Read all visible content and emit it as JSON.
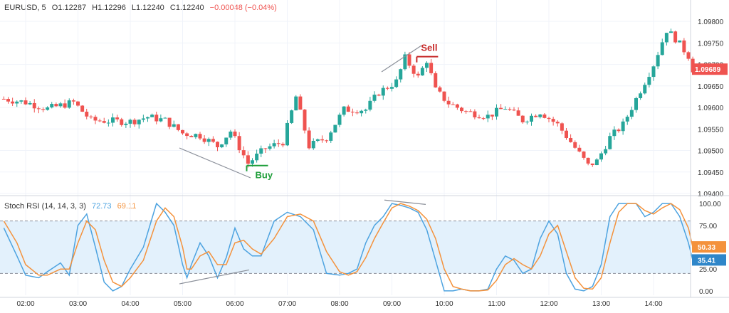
{
  "header": {
    "symbol": "EURUSD, 5",
    "open": "O1.12287",
    "high": "H1.12296",
    "low": "L1.12240",
    "close": "C1.12240",
    "change": "−0.00048 (−0.04%)"
  },
  "indicator": {
    "name": "Stoch RSI (14, 14, 3, 3)",
    "k_value": "72.73",
    "d_value": "69.11"
  },
  "colors": {
    "up": "#26a69a",
    "down": "#ef5350",
    "k_line": "#4da3e0",
    "d_line": "#f4923c",
    "band_fill": "#e3f1fc",
    "buy_label": "#1e9e3a",
    "sell_label": "#c62828",
    "trendline": "#8a8f99"
  },
  "annotations": {
    "buy": "Buy",
    "sell": "Sell"
  },
  "price_badges": {
    "last_price": "1.09689"
  },
  "rsi_badges": {
    "d_badge": "50.33",
    "k_badge": "35.41"
  },
  "chart_data": [
    {
      "type": "candlestick",
      "title": "EURUSD, 5",
      "x_ticks": [
        "02:00",
        "03:00",
        "04:00",
        "05:00",
        "06:00",
        "07:00",
        "08:00",
        "09:00",
        "10:00",
        "11:00",
        "12:00",
        "13:00",
        "14:00"
      ],
      "y_ticks": [
        "1.09800",
        "1.09750",
        "1.09700",
        "1.09650",
        "1.09600",
        "1.09550",
        "1.09500",
        "1.09450",
        "1.09400"
      ],
      "ylim": [
        1.094,
        1.0982
      ],
      "grid": true,
      "last_price": 1.09689,
      "ohlc_anchor_points": [
        {
          "time": "01:35",
          "close": 1.0962
        },
        {
          "time": "02:00",
          "close": 1.09612
        },
        {
          "time": "02:25",
          "close": 1.09597
        },
        {
          "time": "02:55",
          "close": 1.09612
        },
        {
          "time": "03:15",
          "close": 1.0957
        },
        {
          "time": "04:00",
          "close": 1.09567
        },
        {
          "time": "04:20",
          "close": 1.09578
        },
        {
          "time": "04:40",
          "close": 1.0957
        },
        {
          "time": "05:00",
          "close": 1.0954
        },
        {
          "time": "05:20",
          "close": 1.09535
        },
        {
          "time": "05:40",
          "close": 1.0951
        },
        {
          "time": "05:55",
          "close": 1.09545
        },
        {
          "time": "06:15",
          "close": 1.0947
        },
        {
          "time": "06:35",
          "close": 1.09505
        },
        {
          "time": "06:55",
          "close": 1.0952
        },
        {
          "time": "07:10",
          "close": 1.09625
        },
        {
          "time": "07:25",
          "close": 1.0951
        },
        {
          "time": "07:45",
          "close": 1.0953
        },
        {
          "time": "08:05",
          "close": 1.09595
        },
        {
          "time": "08:30",
          "close": 1.09595
        },
        {
          "time": "08:45",
          "close": 1.09635
        },
        {
          "time": "09:05",
          "close": 1.0966
        },
        {
          "time": "09:15",
          "close": 1.09715
        },
        {
          "time": "09:30",
          "close": 1.0967
        },
        {
          "time": "09:40",
          "close": 1.0971
        },
        {
          "time": "09:50",
          "close": 1.0964
        },
        {
          "time": "10:05",
          "close": 1.0961
        },
        {
          "time": "10:25",
          "close": 1.0959
        },
        {
          "time": "10:50",
          "close": 1.0958
        },
        {
          "time": "11:10",
          "close": 1.096
        },
        {
          "time": "11:30",
          "close": 1.0957
        },
        {
          "time": "11:50",
          "close": 1.0959
        },
        {
          "time": "12:10",
          "close": 1.0956
        },
        {
          "time": "12:25",
          "close": 1.0952
        },
        {
          "time": "12:45",
          "close": 1.09465
        },
        {
          "time": "12:55",
          "close": 1.09475
        },
        {
          "time": "13:10",
          "close": 1.0953
        },
        {
          "time": "13:25",
          "close": 1.0956
        },
        {
          "time": "13:45",
          "close": 1.0964
        },
        {
          "time": "14:00",
          "close": 1.097
        },
        {
          "time": "14:15",
          "close": 1.0978
        },
        {
          "time": "14:25",
          "close": 1.0976
        },
        {
          "time": "14:40",
          "close": 1.0972
        },
        {
          "time": "14:45",
          "close": 1.09689
        }
      ],
      "annotations": [
        {
          "label": "Buy",
          "time": "06:20",
          "price": 1.09465
        },
        {
          "label": "Sell",
          "time": "09:35",
          "price": 1.09718
        }
      ]
    },
    {
      "type": "line",
      "title": "Stoch RSI (14, 14, 3, 3)",
      "y_ticks": [
        "100.00",
        "75.00",
        "25.00",
        "0.00"
      ],
      "ylim": [
        -5,
        105
      ],
      "bands": [
        20,
        80
      ],
      "grid": true,
      "series": [
        {
          "name": "K",
          "x": [
            "01:35",
            "01:50",
            "02:00",
            "02:15",
            "02:25",
            "02:40",
            "02:50",
            "03:00",
            "03:10",
            "03:20",
            "03:30",
            "03:40",
            "03:50",
            "04:00",
            "04:15",
            "04:30",
            "04:40",
            "04:50",
            "05:00",
            "05:05",
            "05:10",
            "05:20",
            "05:30",
            "05:40",
            "05:50",
            "06:00",
            "06:10",
            "06:20",
            "06:30",
            "06:45",
            "07:00",
            "07:15",
            "07:30",
            "07:45",
            "08:00",
            "08:10",
            "08:20",
            "08:30",
            "08:40",
            "08:50",
            "09:00",
            "09:10",
            "09:20",
            "09:30",
            "09:40",
            "09:50",
            "10:00",
            "10:10",
            "10:20",
            "10:30",
            "10:40",
            "10:50",
            "11:00",
            "11:10",
            "11:20",
            "11:30",
            "11:40",
            "11:50",
            "12:00",
            "12:10",
            "12:20",
            "12:30",
            "12:40",
            "12:50",
            "13:00",
            "13:10",
            "13:20",
            "13:30",
            "13:40",
            "13:50",
            "14:00",
            "14:10",
            "14:20",
            "14:30",
            "14:40",
            "14:45"
          ],
          "values": [
            72,
            40,
            18,
            15,
            22,
            32,
            18,
            75,
            88,
            50,
            10,
            0,
            5,
            25,
            50,
            100,
            90,
            75,
            30,
            15,
            30,
            55,
            40,
            15,
            38,
            72,
            48,
            40,
            40,
            80,
            90,
            85,
            70,
            20,
            18,
            20,
            25,
            55,
            75,
            85,
            100,
            98,
            95,
            90,
            70,
            35,
            0,
            0,
            2,
            0,
            0,
            2,
            25,
            40,
            35,
            20,
            25,
            60,
            80,
            65,
            20,
            2,
            0,
            5,
            30,
            85,
            100,
            100,
            100,
            85,
            90,
            100,
            100,
            85,
            55,
            35
          ]
        },
        {
          "name": "D",
          "x": [
            "01:35",
            "01:50",
            "02:00",
            "02:15",
            "02:25",
            "02:40",
            "02:50",
            "03:00",
            "03:10",
            "03:20",
            "03:30",
            "03:40",
            "03:50",
            "04:00",
            "04:15",
            "04:30",
            "04:40",
            "04:50",
            "05:00",
            "05:05",
            "05:10",
            "05:20",
            "05:30",
            "05:40",
            "05:50",
            "06:00",
            "06:10",
            "06:20",
            "06:30",
            "06:45",
            "07:00",
            "07:15",
            "07:30",
            "07:45",
            "08:00",
            "08:10",
            "08:20",
            "08:30",
            "08:40",
            "08:50",
            "09:00",
            "09:10",
            "09:20",
            "09:30",
            "09:40",
            "09:50",
            "10:00",
            "10:10",
            "10:20",
            "10:30",
            "10:40",
            "10:50",
            "11:00",
            "11:10",
            "11:20",
            "11:30",
            "11:40",
            "11:50",
            "12:00",
            "12:10",
            "12:20",
            "12:30",
            "12:40",
            "12:50",
            "13:00",
            "13:10",
            "13:20",
            "13:30",
            "13:40",
            "13:50",
            "14:00",
            "14:10",
            "14:20",
            "14:30",
            "14:40",
            "14:45"
          ],
          "values": [
            80,
            55,
            30,
            18,
            18,
            25,
            25,
            55,
            80,
            70,
            35,
            10,
            5,
            15,
            35,
            80,
            95,
            85,
            50,
            25,
            25,
            40,
            45,
            30,
            30,
            55,
            58,
            48,
            42,
            60,
            85,
            88,
            80,
            45,
            22,
            18,
            22,
            38,
            60,
            78,
            95,
            100,
            97,
            92,
            82,
            60,
            25,
            5,
            2,
            0,
            0,
            1,
            12,
            30,
            37,
            30,
            25,
            40,
            65,
            75,
            45,
            15,
            3,
            2,
            15,
            55,
            90,
            100,
            100,
            92,
            88,
            95,
            100,
            93,
            72,
            50
          ]
        }
      ]
    }
  ]
}
